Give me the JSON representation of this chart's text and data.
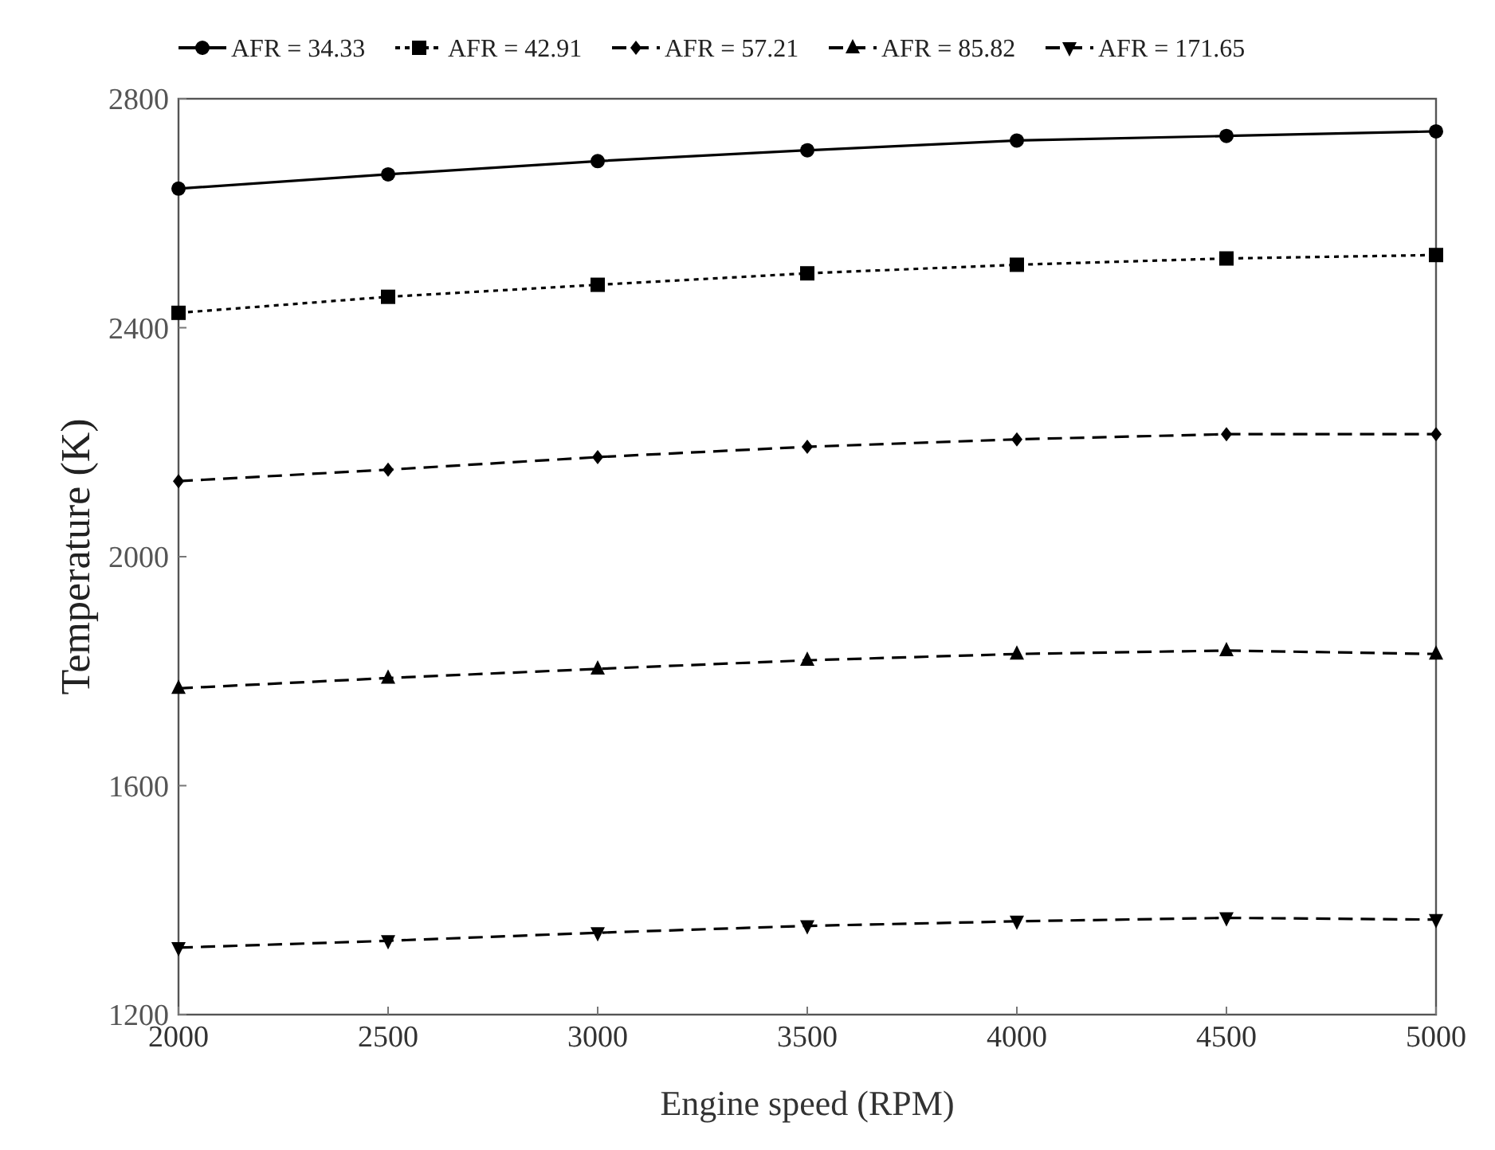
{
  "chart_data": {
    "type": "line",
    "xlabel": "Engine speed (RPM)",
    "ylabel": "Temperature (K)",
    "x": [
      2000,
      2500,
      3000,
      3500,
      4000,
      4500,
      5000
    ],
    "xlim": [
      2000,
      5000
    ],
    "xticks": [
      2000,
      2500,
      3000,
      3500,
      4000,
      4500,
      5000
    ],
    "ylim": [
      1200,
      2800
    ],
    "yticks": [
      1200,
      1600,
      2000,
      2400,
      2800
    ],
    "grid": false,
    "legend": "top",
    "series": [
      {
        "name": "AFR = 34.33",
        "color": "#000000",
        "marker": "circle",
        "line_style": "solid",
        "values": [
          2643,
          2668,
          2691,
          2710,
          2727,
          2735,
          2743
        ]
      },
      {
        "name": "AFR = 42.91",
        "color": "#000000",
        "marker": "square",
        "line_style": "dotted",
        "values": [
          2426,
          2454,
          2475,
          2495,
          2510,
          2521,
          2527
        ]
      },
      {
        "name": "AFR = 57.21",
        "color": "#000000",
        "marker": "diamond",
        "line_style": "dashed",
        "values": [
          2132,
          2152,
          2174,
          2192,
          2205,
          2214,
          2214
        ]
      },
      {
        "name": "AFR = 85.82",
        "color": "#000000",
        "marker": "triangle",
        "line_style": "dashed",
        "values": [
          1770,
          1788,
          1804,
          1819,
          1830,
          1836,
          1830
        ]
      },
      {
        "name": "AFR = 171.65",
        "color": "#000000",
        "marker": "triangle-down",
        "line_style": "dashed",
        "values": [
          1317,
          1329,
          1343,
          1355,
          1363,
          1369,
          1366
        ]
      }
    ]
  }
}
